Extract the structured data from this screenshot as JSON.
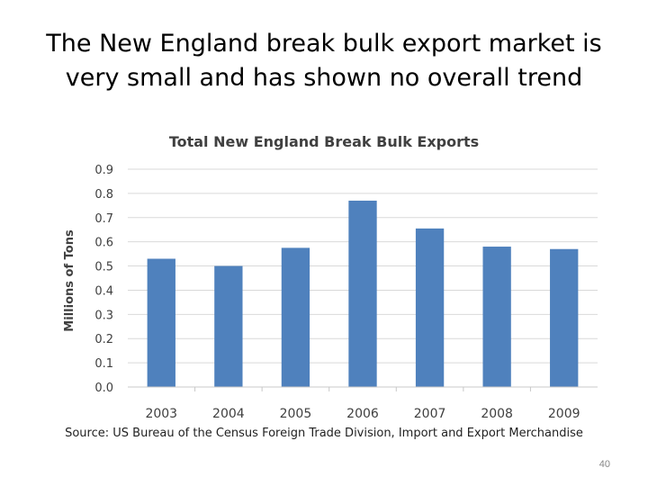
{
  "slide": {
    "title_line1": "The New England break bulk export market is",
    "title_line2": "very small and has shown no overall trend",
    "source": "Source: US Bureau of the Census Foreign Trade Division, Import and Export Merchandise",
    "page_number": "40"
  },
  "chart_data": {
    "type": "bar",
    "title": "Total New England Break Bulk Exports",
    "xlabel": "",
    "ylabel": "Millions of Tons",
    "categories": [
      "2003",
      "2004",
      "2005",
      "2006",
      "2007",
      "2008",
      "2009"
    ],
    "values": [
      0.53,
      0.5,
      0.575,
      0.77,
      0.655,
      0.58,
      0.57
    ],
    "ylim": [
      0,
      0.9
    ],
    "yticks": [
      "0.0",
      "0.1",
      "0.2",
      "0.3",
      "0.4",
      "0.5",
      "0.6",
      "0.7",
      "0.8",
      "0.9"
    ],
    "grid": true,
    "legend": "none",
    "bar_color": "#4f81bd"
  }
}
